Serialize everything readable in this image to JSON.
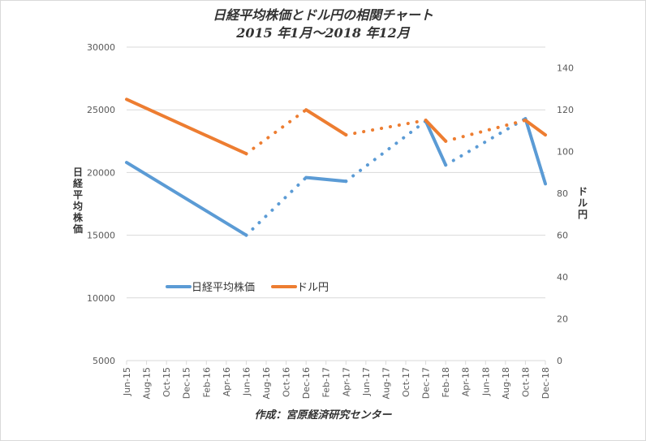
{
  "title_line1": "日経平均株価とドル円の相関チャート",
  "title_line2": "2015 年1月～2018 年12月",
  "footer": "作成：宮原経済研究センター",
  "left_axis_label": "日経平均株価",
  "right_axis_label": "ドル円",
  "colors": {
    "nikkei": "#5b9bd5",
    "usdjpy": "#ed7d31",
    "grid": "#d9d9d9",
    "axis_text": "#595959"
  },
  "chart_data": {
    "type": "line",
    "categories": [
      "Jun-15",
      "Aug-15",
      "Oct-15",
      "Dec-15",
      "Feb-16",
      "Apr-16",
      "Jun-16",
      "Aug-16",
      "Oct-16",
      "Dec-16",
      "Feb-17",
      "Apr-17",
      "Jun-17",
      "Aug-17",
      "Oct-17",
      "Dec-17",
      "Feb-18",
      "Apr-18",
      "Jun-18",
      "Aug-18",
      "Oct-18",
      "Dec-18"
    ],
    "y_left": {
      "label": "日経平均株価",
      "min": 5000,
      "max": 30000,
      "ticks": [
        5000,
        10000,
        15000,
        20000,
        25000,
        30000
      ]
    },
    "y_right": {
      "label": "ドル円",
      "min": 0,
      "max": 150,
      "ticks": [
        0,
        20,
        40,
        60,
        80,
        100,
        120,
        140
      ]
    },
    "legend_position": "lower-left inside plot",
    "series": [
      {
        "name": "日経平均株価",
        "axis": "left",
        "color": "#5b9bd5",
        "x": [
          0,
          6,
          9,
          11,
          15,
          16,
          20,
          21
        ],
        "values": [
          20800,
          15000,
          19600,
          19300,
          24100,
          20600,
          24300,
          19100
        ],
        "dotted_segments": [
          1,
          3,
          5
        ]
      },
      {
        "name": "ドル円",
        "axis": "right",
        "color": "#ed7d31",
        "x": [
          0,
          6,
          9,
          11,
          15,
          16,
          20,
          21
        ],
        "values": [
          125,
          99,
          120,
          108,
          115,
          105,
          115,
          108
        ],
        "dotted_segments": [
          1,
          3,
          5
        ]
      }
    ]
  }
}
